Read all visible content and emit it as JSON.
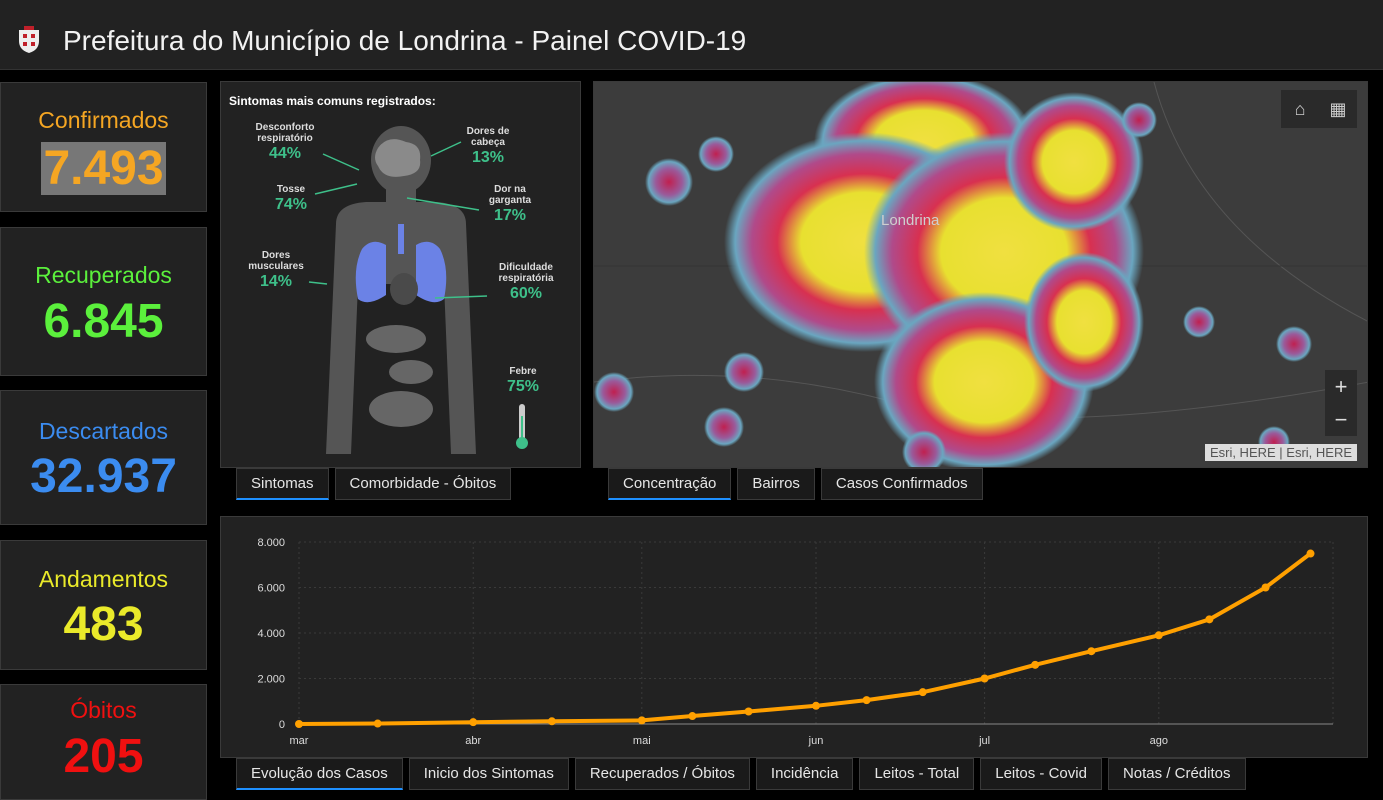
{
  "header": {
    "title": "Prefeitura do Município de Londrina - Painel COVID-19"
  },
  "cards": [
    {
      "label": "Confirmados",
      "value": "7.493"
    },
    {
      "label": "Recuperados",
      "value": "6.845"
    },
    {
      "label": "Descartados",
      "value": "32.937"
    },
    {
      "label": "Andamentos",
      "value": "483"
    },
    {
      "label": "Óbitos",
      "value": "205"
    }
  ],
  "symptoms": {
    "heading": "Sintomas mais comuns registrados:",
    "items": [
      {
        "label": "Desconforto respiratório",
        "pct": "44%"
      },
      {
        "label": "Dores de cabeça",
        "pct": "13%"
      },
      {
        "label": "Tosse",
        "pct": "74%"
      },
      {
        "label": "Dor na garganta",
        "pct": "17%"
      },
      {
        "label": "Dores musculares",
        "pct": "14%"
      },
      {
        "label": "Dificuldade respiratória",
        "pct": "60%"
      },
      {
        "label": "Febre",
        "pct": "75%"
      }
    ]
  },
  "symptom_tabs": [
    "Sintomas",
    "Comorbidade - Óbitos"
  ],
  "map": {
    "label": "Londrina",
    "attribution": "Esri, HERE | Esri, HERE",
    "zoom_in": "+",
    "zoom_out": "−",
    "home_icon": "home-icon",
    "grid_icon": "basemap-grid-icon"
  },
  "map_tabs": [
    "Concentração",
    "Bairros",
    "Casos Confirmados"
  ],
  "bottom_tabs": [
    "Evolução dos Casos",
    "Inicio dos Sintomas",
    "Recuperados / Óbitos",
    "Incidência",
    "Leitos - Total",
    "Leitos - Covid",
    "Notas / Créditos"
  ],
  "chart_data": {
    "type": "line",
    "title": "",
    "xlabel": "",
    "ylabel": "",
    "ylim": [
      0,
      8000
    ],
    "yticks": [
      "0",
      "2.000",
      "4.000",
      "6.000",
      "8.000"
    ],
    "xticks": [
      "mar",
      "abr",
      "mai",
      "jun",
      "jul",
      "ago"
    ],
    "series": [
      {
        "color": "#ffa000",
        "x": [
          "2020-03-01",
          "2020-03-15",
          "2020-04-01",
          "2020-04-15",
          "2020-05-01",
          "2020-05-10",
          "2020-05-20",
          "2020-06-01",
          "2020-06-10",
          "2020-06-20",
          "2020-07-01",
          "2020-07-10",
          "2020-07-20",
          "2020-08-01",
          "2020-08-10",
          "2020-08-20",
          "2020-08-28"
        ],
        "values": [
          0,
          20,
          80,
          120,
          160,
          350,
          550,
          800,
          1050,
          1400,
          2000,
          2600,
          3200,
          3900,
          4600,
          6000,
          7493
        ]
      }
    ]
  }
}
